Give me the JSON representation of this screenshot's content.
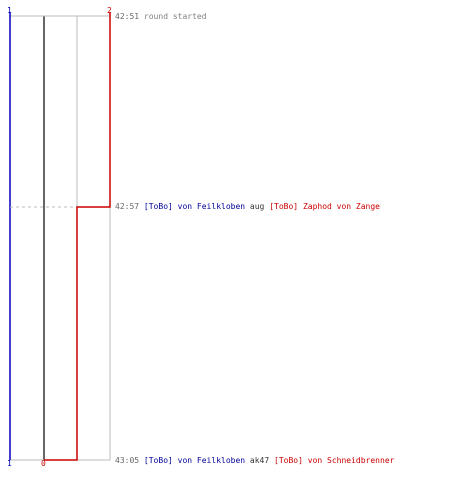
{
  "colors": {
    "team_blue": "#0000bb",
    "team_red": "#cc0000",
    "text_blue": "#000099",
    "axis_gray": "#bbbbbb",
    "dark_gray": "#666666"
  },
  "scoreboard": {
    "blue_top": "1",
    "red_top": "2",
    "blue_bottom": "1",
    "red_bottom": "0"
  },
  "events": [
    {
      "time": "42:51",
      "text": "round started"
    },
    {
      "time": "42:57",
      "killer_tag": "[ToBo]",
      "killer_name": "von Feilkloben",
      "weapon": "aug",
      "victim_tag": "[ToBo]",
      "victim_name": "Zaphod von Zange"
    },
    {
      "time": "43:05",
      "killer_tag": "[ToBo]",
      "killer_name": "von Feilkloben",
      "weapon": "ak47",
      "victim_tag": "[ToBo]",
      "victim_name": "von Schneidbrenner"
    }
  ]
}
